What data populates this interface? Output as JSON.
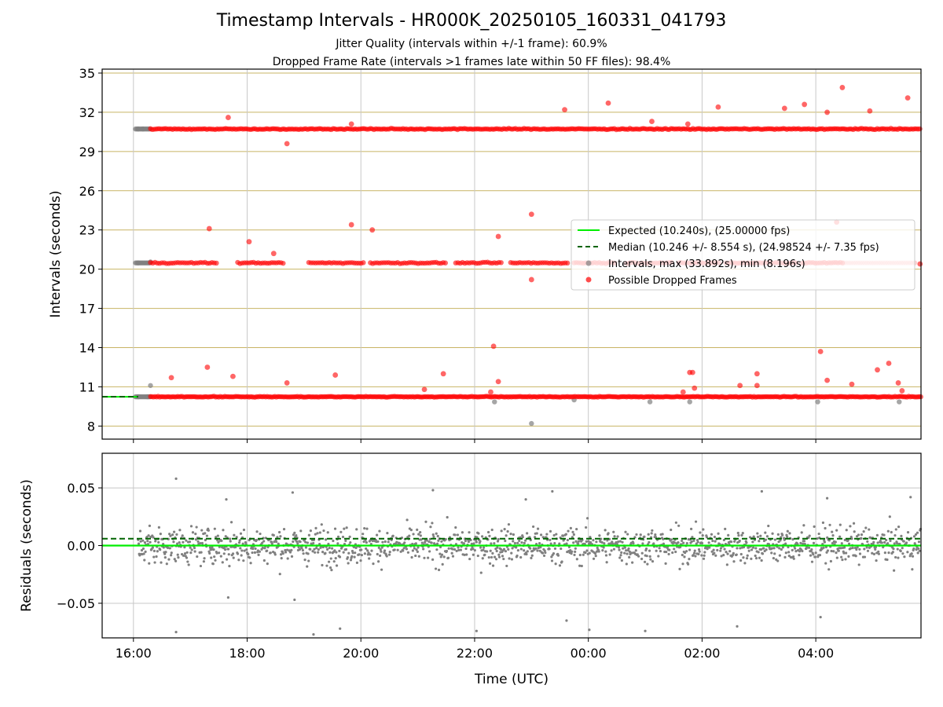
{
  "title": "Timestamp Intervals - HR000K_20250105_160331_041793",
  "subtitle1": "Jitter Quality (intervals within +/-1 frame): 60.9%",
  "subtitle2": "Dropped Frame Rate (intervals >1 frames late within 50 FF files): 98.4%",
  "colors": {
    "expected": "#00ee00",
    "median": "#006400",
    "intervals": "#808080",
    "dropped": "#ff0000",
    "hgrid": "#c8b464",
    "vgrid": "#c8c8c8"
  },
  "chart_data": [
    {
      "type": "scatter",
      "panel": "intervals",
      "ylabel": "Intervals (seconds)",
      "xlabel": "",
      "x_start": "15:27",
      "x_end": "05:51 (next day)",
      "ylim": [
        7,
        35.3
      ],
      "yticks": [
        "8",
        "11",
        "14",
        "17",
        "20",
        "23",
        "26",
        "29",
        "32",
        "35"
      ],
      "xticks": [
        "16:00",
        "18:00",
        "20:00",
        "22:00",
        "00:00",
        "02:00",
        "04:00"
      ],
      "grid": true,
      "legend_position": "right",
      "legend": [
        {
          "key": "expected",
          "label": "Expected (10.240s), (25.00000 fps)"
        },
        {
          "key": "median",
          "label": "Median (10.246 +/- 8.554 s), (24.98524 +/- 7.35 fps)"
        },
        {
          "key": "intervals",
          "label": "Intervals, max (33.892s), min (8.196s)"
        },
        {
          "key": "dropped",
          "label": "Possible Dropped Frames"
        }
      ],
      "expected_value": 10.24,
      "median_value": 10.246,
      "interval_bands_description": "Dense bands of intervals near 10.24 s, 20.48 s and 30.72 s",
      "bands": [
        10.24,
        20.48,
        30.72
      ],
      "gray_points": [
        {
          "t": "16:05",
          "y": 30.72
        },
        {
          "t": "16:10",
          "y": 30.72
        },
        {
          "t": "16:05",
          "y": 20.48
        },
        {
          "t": "16:18",
          "y": 20.55
        },
        {
          "t": "16:05",
          "y": 10.24
        },
        {
          "t": "16:15",
          "y": 10.24
        },
        {
          "t": "16:18",
          "y": 11.1
        },
        {
          "t": "22:21",
          "y": 9.85
        },
        {
          "t": "23:00",
          "y": 8.196
        },
        {
          "t": "23:45",
          "y": 10.0
        },
        {
          "t": "01:05",
          "y": 9.85
        },
        {
          "t": "01:47",
          "y": 9.85
        },
        {
          "t": "04:02",
          "y": 9.85
        },
        {
          "t": "05:28",
          "y": 9.85
        }
      ],
      "dropped_outliers": [
        {
          "t": "16:40",
          "y": 11.7
        },
        {
          "t": "17:18",
          "y": 12.5
        },
        {
          "t": "17:20",
          "y": 23.1
        },
        {
          "t": "17:40",
          "y": 31.6
        },
        {
          "t": "17:45",
          "y": 11.8
        },
        {
          "t": "18:02",
          "y": 22.1
        },
        {
          "t": "18:28",
          "y": 21.2
        },
        {
          "t": "18:42",
          "y": 11.3
        },
        {
          "t": "18:42",
          "y": 29.6
        },
        {
          "t": "19:33",
          "y": 11.9
        },
        {
          "t": "19:50",
          "y": 23.4
        },
        {
          "t": "19:50",
          "y": 31.1
        },
        {
          "t": "20:12",
          "y": 23.0
        },
        {
          "t": "21:07",
          "y": 10.8
        },
        {
          "t": "21:27",
          "y": 12.0
        },
        {
          "t": "22:20",
          "y": 14.1
        },
        {
          "t": "22:25",
          "y": 22.5
        },
        {
          "t": "22:25",
          "y": 11.4
        },
        {
          "t": "22:17",
          "y": 10.6
        },
        {
          "t": "23:00",
          "y": 24.2
        },
        {
          "t": "23:00",
          "y": 19.2
        },
        {
          "t": "23:35",
          "y": 32.2
        },
        {
          "t": "00:21",
          "y": 32.7
        },
        {
          "t": "01:07",
          "y": 31.3
        },
        {
          "t": "01:45",
          "y": 31.1
        },
        {
          "t": "01:47",
          "y": 12.1
        },
        {
          "t": "01:50",
          "y": 12.1
        },
        {
          "t": "01:52",
          "y": 10.9
        },
        {
          "t": "01:40",
          "y": 10.6
        },
        {
          "t": "02:17",
          "y": 32.4
        },
        {
          "t": "02:40",
          "y": 11.1
        },
        {
          "t": "02:58",
          "y": 12.0
        },
        {
          "t": "02:58",
          "y": 11.1
        },
        {
          "t": "03:27",
          "y": 32.3
        },
        {
          "t": "03:48",
          "y": 32.6
        },
        {
          "t": "04:05",
          "y": 13.7
        },
        {
          "t": "04:12",
          "y": 11.5
        },
        {
          "t": "04:12",
          "y": 32.0
        },
        {
          "t": "04:22",
          "y": 23.6
        },
        {
          "t": "04:28",
          "y": 33.892
        },
        {
          "t": "04:38",
          "y": 11.2
        },
        {
          "t": "04:57",
          "y": 32.1
        },
        {
          "t": "05:05",
          "y": 12.3
        },
        {
          "t": "05:17",
          "y": 12.8
        },
        {
          "t": "05:27",
          "y": 11.3
        },
        {
          "t": "05:31",
          "y": 10.7
        },
        {
          "t": "05:37",
          "y": 33.1
        },
        {
          "t": "05:50",
          "y": 20.4
        }
      ]
    },
    {
      "type": "scatter",
      "panel": "residuals",
      "ylabel": "Residuals (seconds)",
      "xlabel": "Time (UTC)",
      "ylim": [
        -0.08,
        0.08
      ],
      "yticks": [
        "−0.05",
        "0.00",
        "0.05"
      ],
      "xticks": [
        "16:00",
        "18:00",
        "20:00",
        "22:00",
        "00:00",
        "02:00",
        "04:00"
      ],
      "grid": true,
      "expected_value": 0.0,
      "median_value": 0.006,
      "residual_spread_description": "Gray residual points scattered mostly within ±0.02 s around zero",
      "residual_outliers": [
        {
          "t": "16:45",
          "y": 0.058
        },
        {
          "t": "16:45",
          "y": -0.075
        },
        {
          "t": "17:38",
          "y": 0.04
        },
        {
          "t": "17:40",
          "y": -0.045
        },
        {
          "t": "18:48",
          "y": 0.046
        },
        {
          "t": "18:50",
          "y": -0.047
        },
        {
          "t": "19:10",
          "y": -0.077
        },
        {
          "t": "19:38",
          "y": -0.072
        },
        {
          "t": "21:16",
          "y": 0.048
        },
        {
          "t": "22:02",
          "y": -0.074
        },
        {
          "t": "22:54",
          "y": 0.04
        },
        {
          "t": "23:22",
          "y": 0.047
        },
        {
          "t": "23:37",
          "y": -0.065
        },
        {
          "t": "00:01",
          "y": -0.073
        },
        {
          "t": "01:00",
          "y": -0.074
        },
        {
          "t": "02:37",
          "y": -0.07
        },
        {
          "t": "03:03",
          "y": 0.047
        },
        {
          "t": "04:05",
          "y": -0.062
        },
        {
          "t": "04:12",
          "y": 0.041
        },
        {
          "t": "05:40",
          "y": 0.042
        }
      ]
    }
  ]
}
